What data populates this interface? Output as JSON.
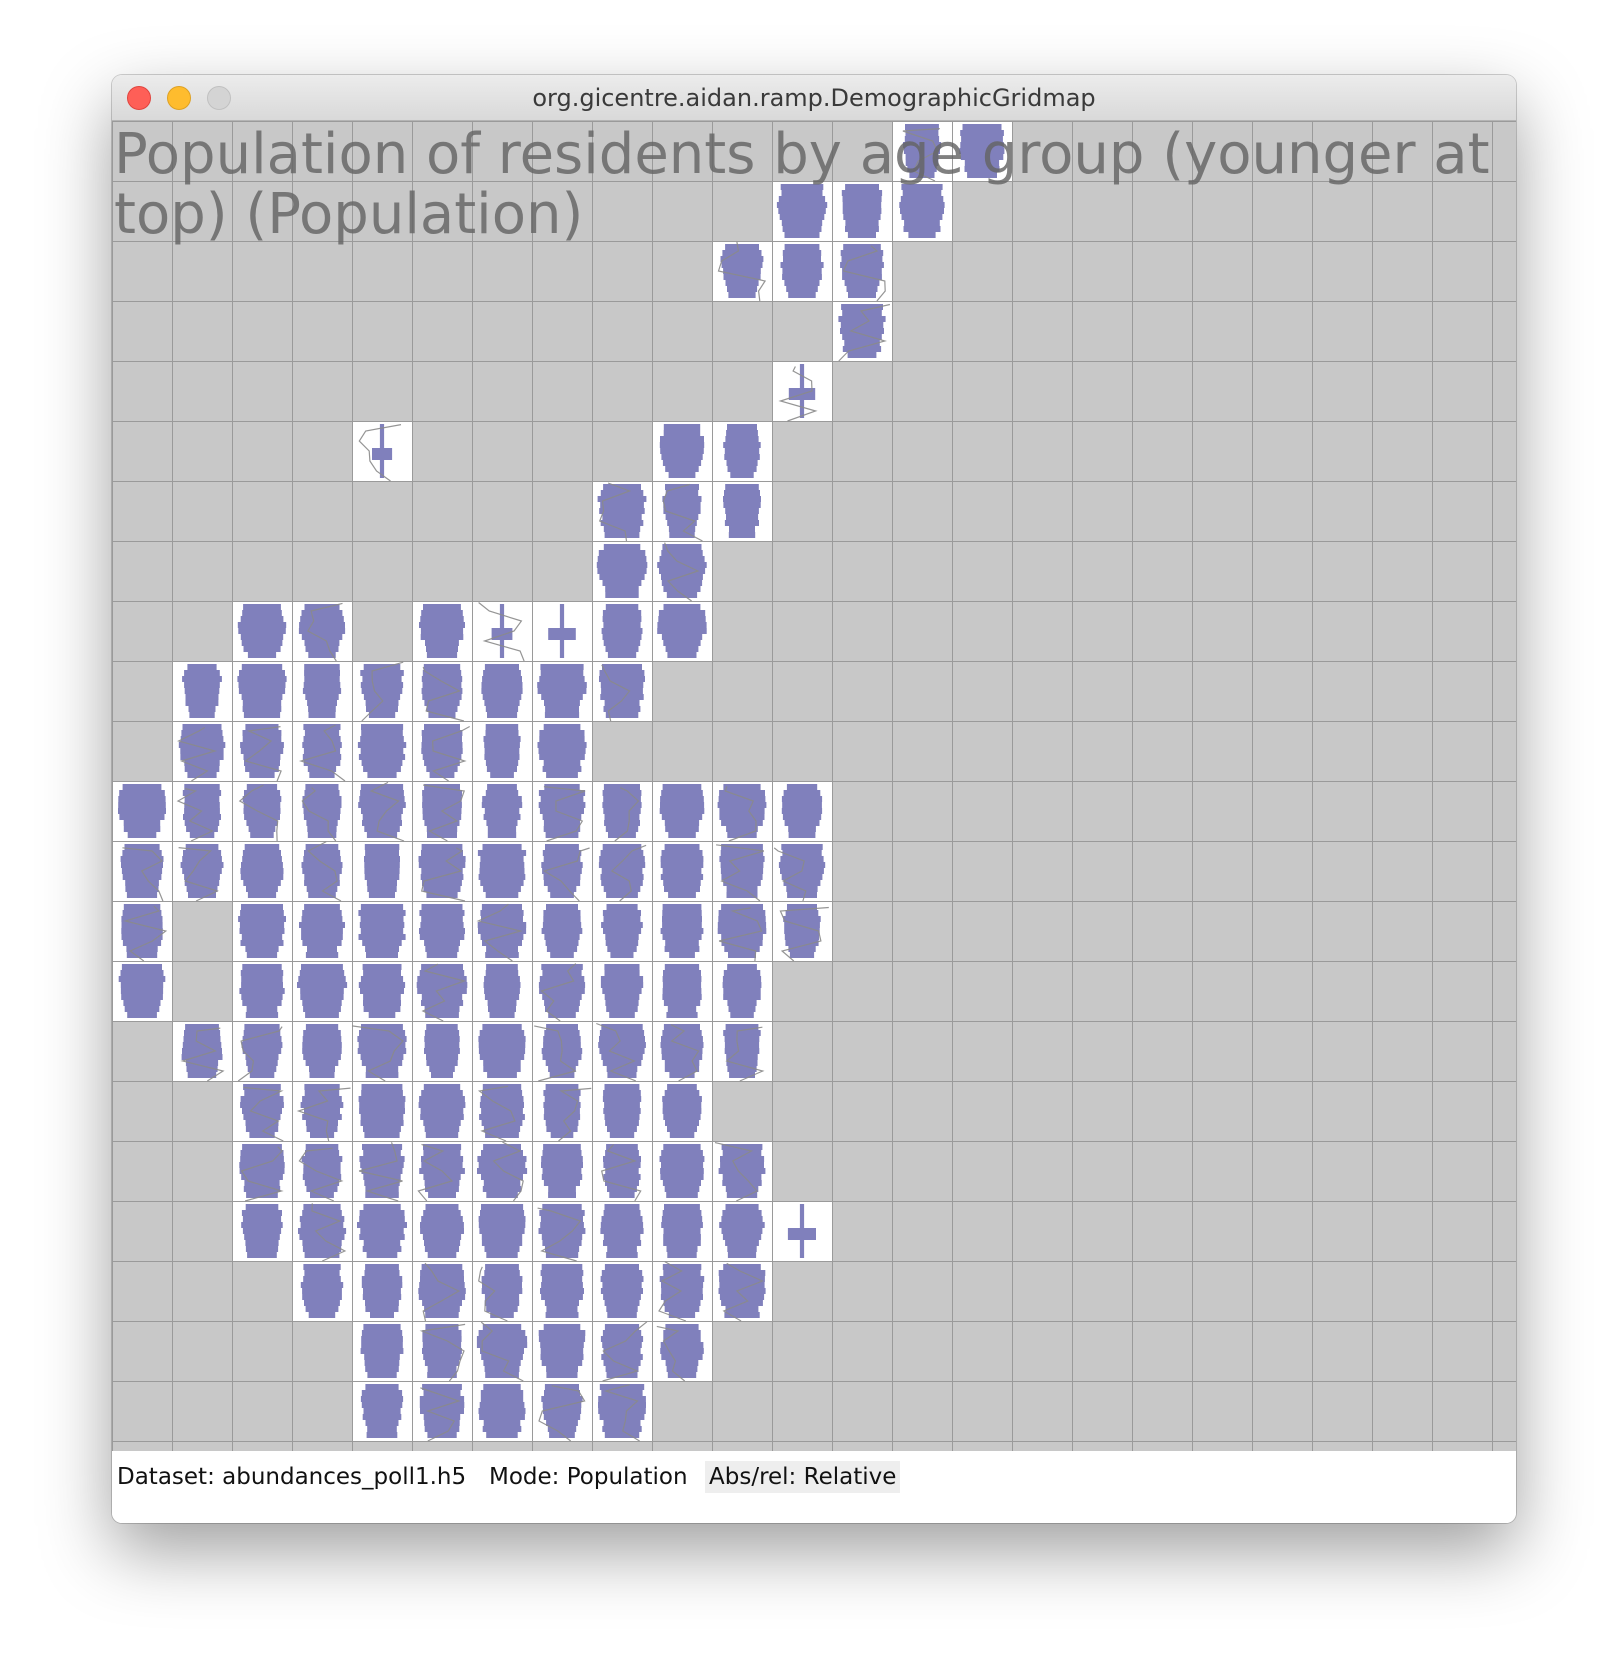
{
  "window": {
    "title": "org.gicentre.aidan.ramp.DemographicGridmap"
  },
  "map": {
    "title": "Population of residents by age group (younger at top) (Population)",
    "colors": {
      "background": "#c8c8c8",
      "grid_line": "#9a9a9a",
      "cell_fill": "#ffffff",
      "glyph": "#8080bc",
      "boundary": "#8a8a8a"
    },
    "occupied_cells": [
      [
        13,
        0
      ],
      [
        14,
        0
      ],
      [
        11,
        1
      ],
      [
        12,
        1
      ],
      [
        13,
        1
      ],
      [
        10,
        2
      ],
      [
        11,
        2
      ],
      [
        12,
        2
      ],
      [
        12,
        3
      ],
      [
        11,
        4
      ],
      [
        4,
        5
      ],
      [
        9,
        5
      ],
      [
        10,
        5
      ],
      [
        8,
        6
      ],
      [
        9,
        6
      ],
      [
        10,
        6
      ],
      [
        8,
        7
      ],
      [
        9,
        7
      ],
      [
        2,
        8
      ],
      [
        3,
        8
      ],
      [
        5,
        8
      ],
      [
        6,
        8
      ],
      [
        7,
        8
      ],
      [
        8,
        8
      ],
      [
        9,
        8
      ],
      [
        1,
        9
      ],
      [
        2,
        9
      ],
      [
        3,
        9
      ],
      [
        4,
        9
      ],
      [
        5,
        9
      ],
      [
        6,
        9
      ],
      [
        7,
        9
      ],
      [
        8,
        9
      ],
      [
        1,
        10
      ],
      [
        2,
        10
      ],
      [
        3,
        10
      ],
      [
        4,
        10
      ],
      [
        5,
        10
      ],
      [
        6,
        10
      ],
      [
        7,
        10
      ],
      [
        0,
        11
      ],
      [
        1,
        11
      ],
      [
        2,
        11
      ],
      [
        3,
        11
      ],
      [
        4,
        11
      ],
      [
        5,
        11
      ],
      [
        6,
        11
      ],
      [
        7,
        11
      ],
      [
        8,
        11
      ],
      [
        9,
        11
      ],
      [
        10,
        11
      ],
      [
        11,
        11
      ],
      [
        0,
        12
      ],
      [
        1,
        12
      ],
      [
        2,
        12
      ],
      [
        3,
        12
      ],
      [
        4,
        12
      ],
      [
        5,
        12
      ],
      [
        6,
        12
      ],
      [
        7,
        12
      ],
      [
        8,
        12
      ],
      [
        9,
        12
      ],
      [
        10,
        12
      ],
      [
        11,
        12
      ],
      [
        0,
        13
      ],
      [
        2,
        13
      ],
      [
        3,
        13
      ],
      [
        4,
        13
      ],
      [
        5,
        13
      ],
      [
        6,
        13
      ],
      [
        7,
        13
      ],
      [
        8,
        13
      ],
      [
        9,
        13
      ],
      [
        10,
        13
      ],
      [
        11,
        13
      ],
      [
        0,
        14
      ],
      [
        2,
        14
      ],
      [
        3,
        14
      ],
      [
        4,
        14
      ],
      [
        5,
        14
      ],
      [
        6,
        14
      ],
      [
        7,
        14
      ],
      [
        8,
        14
      ],
      [
        9,
        14
      ],
      [
        10,
        14
      ],
      [
        1,
        15
      ],
      [
        2,
        15
      ],
      [
        3,
        15
      ],
      [
        4,
        15
      ],
      [
        5,
        15
      ],
      [
        6,
        15
      ],
      [
        7,
        15
      ],
      [
        8,
        15
      ],
      [
        9,
        15
      ],
      [
        10,
        15
      ],
      [
        2,
        16
      ],
      [
        3,
        16
      ],
      [
        4,
        16
      ],
      [
        5,
        16
      ],
      [
        6,
        16
      ],
      [
        7,
        16
      ],
      [
        8,
        16
      ],
      [
        9,
        16
      ],
      [
        2,
        17
      ],
      [
        3,
        17
      ],
      [
        4,
        17
      ],
      [
        5,
        17
      ],
      [
        6,
        17
      ],
      [
        7,
        17
      ],
      [
        8,
        17
      ],
      [
        9,
        17
      ],
      [
        10,
        17
      ],
      [
        2,
        18
      ],
      [
        3,
        18
      ],
      [
        4,
        18
      ],
      [
        5,
        18
      ],
      [
        6,
        18
      ],
      [
        7,
        18
      ],
      [
        8,
        18
      ],
      [
        9,
        18
      ],
      [
        10,
        18
      ],
      [
        11,
        18
      ],
      [
        3,
        19
      ],
      [
        4,
        19
      ],
      [
        5,
        19
      ],
      [
        6,
        19
      ],
      [
        7,
        19
      ],
      [
        8,
        19
      ],
      [
        9,
        19
      ],
      [
        10,
        19
      ],
      [
        4,
        20
      ],
      [
        5,
        20
      ],
      [
        6,
        20
      ],
      [
        7,
        20
      ],
      [
        8,
        20
      ],
      [
        9,
        20
      ],
      [
        4,
        21
      ],
      [
        5,
        21
      ],
      [
        6,
        21
      ],
      [
        7,
        21
      ],
      [
        8,
        21
      ]
    ],
    "sparse_glyph_cells": [
      [
        4,
        5
      ],
      [
        11,
        4
      ],
      [
        6,
        8
      ],
      [
        7,
        8
      ],
      [
        11,
        18
      ]
    ]
  },
  "status": {
    "dataset": "Dataset: abundances_poll1.h5",
    "mode": "Mode: Population",
    "absrel": "Abs/rel: Relative"
  }
}
